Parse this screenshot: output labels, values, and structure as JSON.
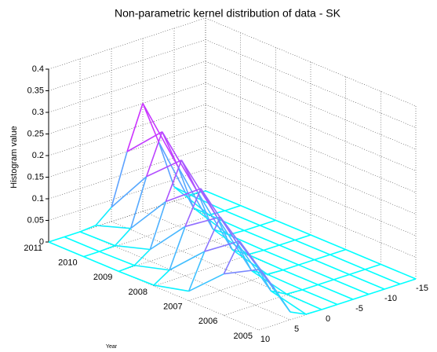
{
  "chart_data": {
    "type": "surface",
    "title": "Non-parametric kernel distribution of data - SK",
    "zlabel": "Histogram value",
    "ylabel": "Year",
    "x": [
      10,
      7.5,
      5,
      2.5,
      0,
      -2.5,
      -5,
      -7.5,
      -10,
      -12.5,
      -15
    ],
    "years": [
      2011,
      2010,
      2009,
      2008,
      2007,
      2006,
      2005
    ],
    "z": [
      [
        0,
        0,
        0,
        0.003,
        0.033,
        0.15,
        0.25,
        0.15,
        0.033,
        0.003,
        0
      ],
      [
        0,
        0,
        0.002,
        0.03,
        0.138,
        0.23,
        0.138,
        0.03,
        0.002,
        0,
        0
      ],
      [
        0,
        0.002,
        0.027,
        0.126,
        0.21,
        0.126,
        0.027,
        0.002,
        0,
        0,
        0
      ],
      [
        0.002,
        0.025,
        0.114,
        0.19,
        0.114,
        0.025,
        0.002,
        0,
        0,
        0,
        0
      ],
      [
        0.022,
        0.102,
        0.17,
        0.102,
        0.022,
        0.002,
        0,
        0,
        0,
        0,
        0
      ],
      [
        0.096,
        0.16,
        0.096,
        0.021,
        0.002,
        0,
        0,
        0,
        0,
        0,
        0
      ],
      [
        0.14,
        0.084,
        0.018,
        0.001,
        0,
        0,
        0,
        0,
        0,
        0,
        0
      ]
    ],
    "xlim": [
      -15,
      10
    ],
    "xticks": [
      10,
      5,
      0,
      -5,
      -10,
      -15
    ],
    "ylim": [
      2005,
      2011
    ],
    "yticks": [
      2011,
      2010,
      2009,
      2008,
      2007,
      2006,
      2005
    ],
    "zlim": [
      0,
      0.4
    ],
    "zticks": [
      0,
      0.05,
      0.1,
      0.15,
      0.2,
      0.25,
      0.3,
      0.35,
      0.4
    ],
    "colormap": [
      "#00ffff",
      "#ff00ff"
    ],
    "grid": true
  }
}
